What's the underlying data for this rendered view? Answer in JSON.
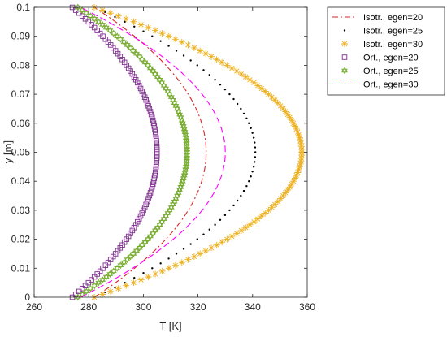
{
  "chart_data": {
    "type": "line",
    "xlabel": "T [K]",
    "ylabel": "y [m]",
    "xlim": [
      260,
      360
    ],
    "ylim": [
      0,
      0.1
    ],
    "xticks": [
      "260",
      "280",
      "300",
      "320",
      "340",
      "360"
    ],
    "yticks": [
      "0",
      "0.01",
      "0.02",
      "0.03",
      "0.04",
      "0.05",
      "0.06",
      "0.07",
      "0.08",
      "0.09",
      "0.1"
    ],
    "grid": false,
    "legend_position": "top-right-outside",
    "y_domain": [
      0,
      0.1
    ],
    "series": [
      {
        "name": "Isotr., egen=20",
        "T_wall": 282,
        "T_max": 323,
        "style": "dashdot",
        "marker": "none",
        "color": "#d62728"
      },
      {
        "name": "Isotr., egen=25",
        "T_wall": 282,
        "T_max": 341,
        "style": "none",
        "marker": "dot",
        "color": "#000000"
      },
      {
        "name": "Isotr., egen=30",
        "T_wall": 282,
        "T_max": 358,
        "style": "none",
        "marker": "asterisk",
        "color": "#edb120"
      },
      {
        "name": "Ort., egen=20",
        "T_wall": 274,
        "T_max": 305,
        "style": "none",
        "marker": "square",
        "color": "#7e2f8e"
      },
      {
        "name": "Ort., egen=25",
        "T_wall": 276,
        "T_max": 316,
        "style": "none",
        "marker": "hexagram",
        "color": "#77ac30"
      },
      {
        "name": "Ort., egen=30",
        "T_wall": 277,
        "T_max": 330,
        "style": "dashed",
        "marker": "none",
        "color": "#ff00ff"
      }
    ]
  }
}
